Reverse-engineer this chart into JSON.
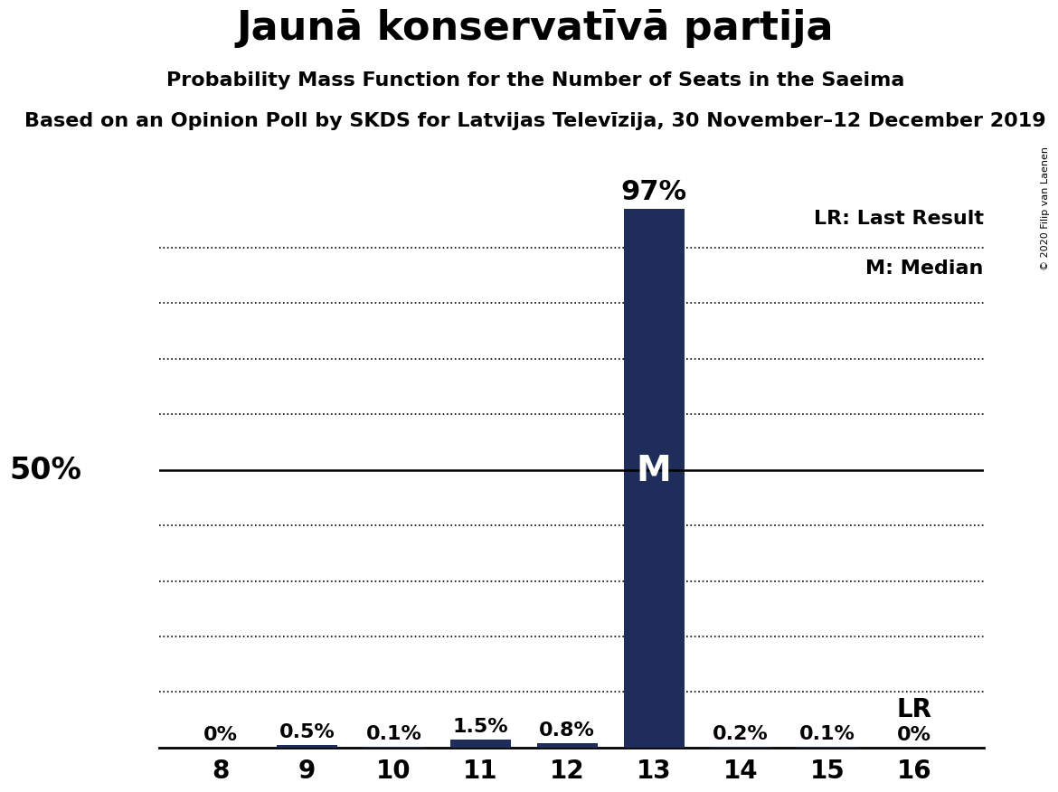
{
  "title": "Jaunā konservatīvā partija",
  "subtitle": "Probability Mass Function for the Number of Seats in the Saeima",
  "source_line": "Based on an Opinion Poll by SKDS for Latvijas Televīzija, 30 November–12 December 2019",
  "copyright": "© 2020 Filip van Laenen",
  "categories": [
    8,
    9,
    10,
    11,
    12,
    13,
    14,
    15,
    16
  ],
  "values": [
    0.0,
    0.5,
    0.1,
    1.5,
    0.8,
    97.0,
    0.2,
    0.1,
    0.0
  ],
  "labels": [
    "0%",
    "0.5%",
    "0.1%",
    "1.5%",
    "0.8%",
    "97%",
    "0.2%",
    "0.1%",
    "0%"
  ],
  "bar_color": "#1e2d5a",
  "median_seat": 13,
  "last_result_seat": 16,
  "median_label": "M",
  "lr_label": "LR",
  "legend_lr": "LR: Last Result",
  "legend_m": "M: Median",
  "background_color": "#ffffff",
  "ylim": [
    0,
    100
  ],
  "ytick_values": [
    10,
    20,
    30,
    40,
    50,
    60,
    70,
    80,
    90
  ],
  "pct_50_label": "50%",
  "title_fontsize": 32,
  "subtitle_fontsize": 16,
  "source_fontsize": 16
}
